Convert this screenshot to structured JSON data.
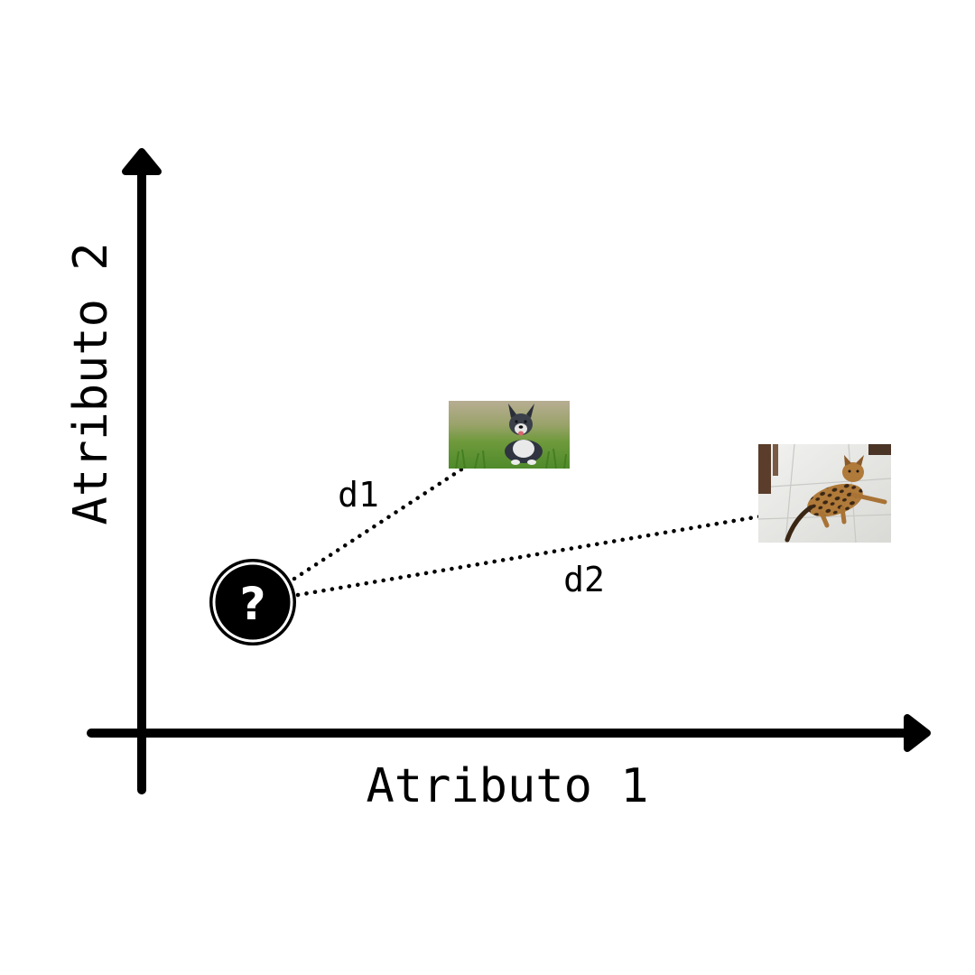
{
  "axes": {
    "x_label": "Atributo 1",
    "y_label": "Atributo 2"
  },
  "query_point": {
    "symbol": "?",
    "icon": "question-mark-icon"
  },
  "neighbors": [
    {
      "id": "dog",
      "icon": "dog-photo",
      "distance_label": "d1"
    },
    {
      "id": "cat",
      "icon": "cat-photo",
      "distance_label": "d2"
    }
  ],
  "colors": {
    "ink": "#000000",
    "background": "#ffffff"
  }
}
